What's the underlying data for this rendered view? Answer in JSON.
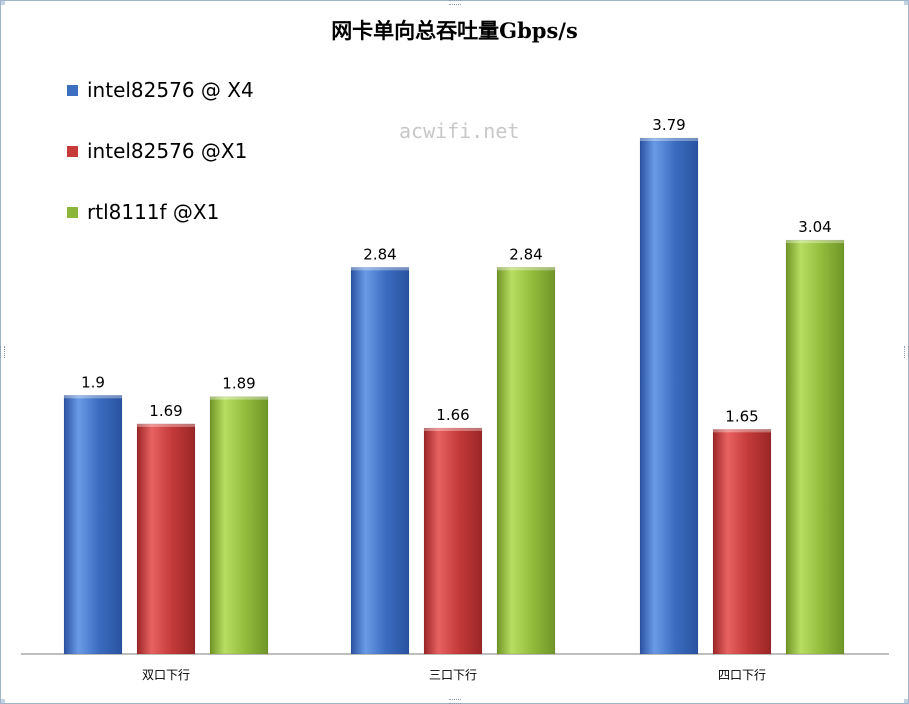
{
  "chart_data": {
    "type": "bar",
    "title": "网卡单向总吞吐量Gbps/s",
    "categories": [
      "双口下行",
      "三口下行",
      "四口下行"
    ],
    "series": [
      {
        "name": "intel82576 @ X4",
        "values": [
          1.9,
          2.84,
          3.79
        ],
        "labels": [
          "1.9",
          "2.84",
          "3.79"
        ],
        "color": "#4a7fd0"
      },
      {
        "name": "intel82576 @X1",
        "values": [
          1.69,
          1.66,
          1.65
        ],
        "labels": [
          "1.69",
          "1.66",
          "1.65"
        ],
        "color": "#d44040"
      },
      {
        "name": "rtl8111f @X1",
        "values": [
          1.89,
          2.84,
          3.04
        ],
        "labels": [
          "1.89",
          "2.84",
          "3.04"
        ],
        "color": "#9bc340"
      }
    ],
    "ylim": [
      0,
      4.4
    ],
    "grid": false,
    "legend_position": "top-left"
  },
  "watermark": "acwifi.net"
}
